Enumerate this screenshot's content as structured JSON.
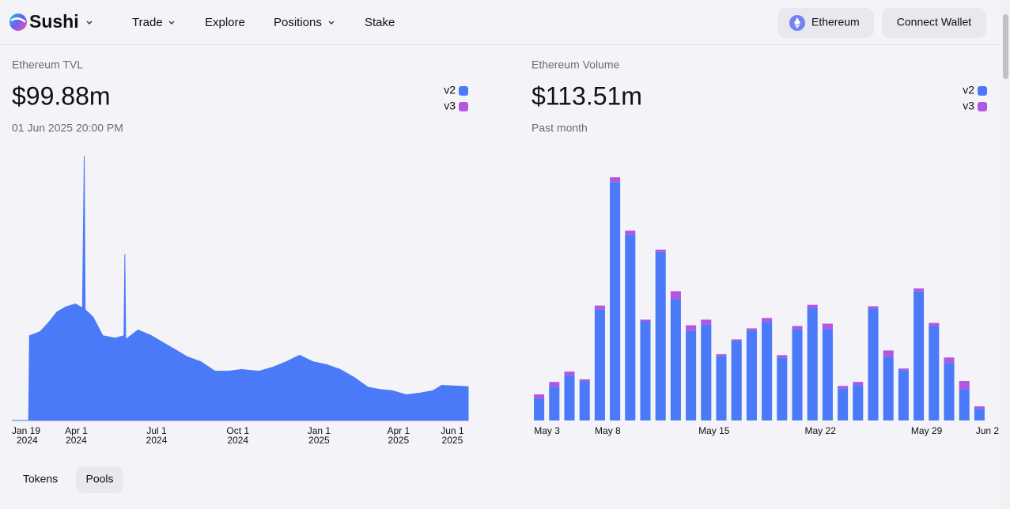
{
  "header": {
    "brand": "Sushi",
    "nav": [
      "Trade",
      "Explore",
      "Positions",
      "Stake"
    ],
    "network": "Ethereum",
    "wallet": "Connect Wallet"
  },
  "chart_data": [
    {
      "type": "area",
      "title": "Ethereum TVL",
      "headline": "$99.88m",
      "subtitle": "01 Jun 2025 20:00 PM",
      "x": [
        "2024-01-19",
        "2024-02-07",
        "2024-02-08",
        "2024-02-20",
        "2024-03-01",
        "2024-03-10",
        "2024-03-20",
        "2024-03-31",
        "2024-04-08",
        "2024-04-10",
        "2024-04-11",
        "2024-04-20",
        "2024-05-01",
        "2024-05-15",
        "2024-05-25",
        "2024-05-26",
        "2024-05-27",
        "2024-06-10",
        "2024-06-25",
        "2024-07-10",
        "2024-07-25",
        "2024-08-05",
        "2024-08-20",
        "2024-09-05",
        "2024-09-20",
        "2024-10-05",
        "2024-10-25",
        "2024-11-10",
        "2024-11-25",
        "2024-12-10",
        "2024-12-25",
        "2025-01-10",
        "2025-01-25",
        "2025-02-10",
        "2025-02-25",
        "2025-03-10",
        "2025-03-25",
        "2025-04-10",
        "2025-04-25",
        "2025-05-10",
        "2025-05-20",
        "2025-06-19"
      ],
      "series": [
        {
          "name": "v2",
          "color": "#4a7af7",
          "values": [
            0,
            0,
            250,
            262,
            290,
            320,
            335,
            344,
            332,
            781,
            327,
            305,
            250,
            243,
            250,
            491,
            239,
            267,
            250,
            227,
            204,
            187,
            173,
            145,
            145,
            150,
            145,
            157,
            173,
            192,
            173,
            164,
            150,
            126,
            98,
            91,
            87,
            75,
            80,
            87,
            103,
            99
          ]
        },
        {
          "name": "v3",
          "color": "#b357e3",
          "values": [
            0,
            0,
            1,
            1,
            1,
            1,
            1,
            1,
            1,
            1,
            1,
            1,
            1,
            1,
            1,
            1,
            1,
            1,
            1,
            1,
            1,
            1,
            1,
            1,
            1,
            1,
            1,
            1,
            1,
            1,
            1,
            1,
            1,
            1,
            1,
            1,
            1,
            1,
            1,
            1,
            1,
            1
          ]
        }
      ],
      "xlim": [
        "2024-01-19",
        "2025-06-19"
      ],
      "xticks": [
        {
          "value": "2024-01-19",
          "label": [
            "Jan 19",
            "2024"
          ]
        },
        {
          "value": "2024-04-01",
          "label": [
            "Apr 1",
            "2024"
          ]
        },
        {
          "value": "2024-07-01",
          "label": [
            "Jul 1",
            "2024"
          ]
        },
        {
          "value": "2024-10-01",
          "label": [
            "Oct 1",
            "2024"
          ]
        },
        {
          "value": "2025-01-01",
          "label": [
            "Jan 1",
            "2025"
          ]
        },
        {
          "value": "2025-04-01",
          "label": [
            "Apr 1",
            "2025"
          ]
        },
        {
          "value": "2025-06-01",
          "label": [
            "Jun 1",
            "2025"
          ]
        }
      ],
      "ylim": [
        0,
        800
      ],
      "legend": "top-right",
      "grid": false
    },
    {
      "type": "bar",
      "stacked": true,
      "title": "Ethereum Volume",
      "headline": "$113.51m",
      "subtitle": "Past month",
      "categories": [
        "May 3",
        null,
        null,
        null,
        "May 8",
        null,
        null,
        null,
        null,
        null,
        null,
        "May 15",
        null,
        null,
        null,
        null,
        null,
        null,
        "May 22",
        null,
        null,
        null,
        null,
        null,
        null,
        "May 29",
        null,
        null,
        null,
        "Jun 2"
      ],
      "series": [
        {
          "name": "v2",
          "color": "#4a7af7",
          "values": [
            0.94,
            1.44,
            1.91,
            1.68,
            4.72,
            10.15,
            7.91,
            4.22,
            7.17,
            5.16,
            3.82,
            4.09,
            2.75,
            3.38,
            3.82,
            4.19,
            2.68,
            3.89,
            4.79,
            3.89,
            1.37,
            1.51,
            4.76,
            2.71,
            2.14,
            5.49,
            4.02,
            2.45,
            1.34,
            0.5
          ]
        },
        {
          "name": "v3",
          "color": "#b357e3",
          "values": [
            0.17,
            0.2,
            0.17,
            0.07,
            0.17,
            0.2,
            0.17,
            0.07,
            0.1,
            0.34,
            0.23,
            0.2,
            0.07,
            0.07,
            0.1,
            0.17,
            0.1,
            0.13,
            0.13,
            0.23,
            0.1,
            0.13,
            0.1,
            0.27,
            0.07,
            0.13,
            0.13,
            0.23,
            0.34,
            0.1
          ]
        }
      ],
      "ylim": [
        0,
        11.5
      ],
      "legend": "top-right",
      "grid": false
    }
  ],
  "tabs": [
    "Tokens",
    "Pools"
  ]
}
